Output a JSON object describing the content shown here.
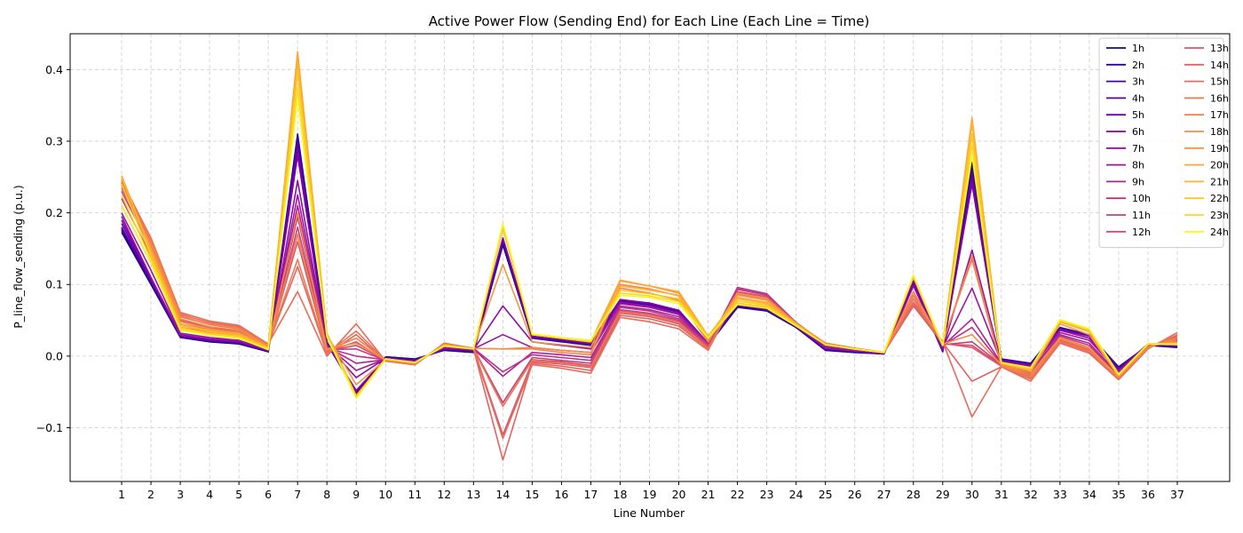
{
  "chart_data": {
    "type": "line",
    "title": "Active Power Flow (Sending End) for Each Line (Each Line = Time)",
    "xlabel": "Line Number",
    "ylabel": "P_line_flow_sending (p.u.)",
    "x": [
      1,
      2,
      3,
      4,
      5,
      6,
      7,
      8,
      9,
      10,
      11,
      12,
      13,
      14,
      15,
      16,
      17,
      18,
      19,
      20,
      21,
      22,
      23,
      24,
      25,
      26,
      27,
      28,
      29,
      30,
      31,
      32,
      33,
      34,
      35,
      36,
      37
    ],
    "ylim": [
      -0.175,
      0.45
    ],
    "yticks": [
      -0.1,
      0.0,
      0.1,
      0.2,
      0.3,
      0.4
    ],
    "ytick_labels": [
      "−0.1",
      "0.0",
      "0.1",
      "0.2",
      "0.3",
      "0.4"
    ],
    "grid": true,
    "legend": {
      "placement": "top-right",
      "columns": 2
    },
    "series": [
      {
        "name": "1h",
        "color": "#0d0887",
        "values": [
          0.173,
          0.1,
          0.026,
          0.02,
          0.017,
          0.006,
          0.31,
          0.02,
          -0.052,
          -0.001,
          -0.004,
          0.008,
          0.005,
          0.155,
          0.025,
          0.02,
          0.015,
          0.075,
          0.07,
          0.06,
          0.015,
          0.068,
          0.063,
          0.04,
          0.008,
          0.005,
          0.003,
          0.1,
          0.006,
          0.27,
          -0.004,
          -0.01,
          0.04,
          0.03,
          -0.015,
          0.015,
          0.012
        ]
      },
      {
        "name": "2h",
        "color": "#2c0594",
        "values": [
          0.176,
          0.102,
          0.027,
          0.021,
          0.018,
          0.006,
          0.3,
          0.019,
          -0.052,
          -0.002,
          -0.005,
          0.009,
          0.006,
          0.158,
          0.026,
          0.021,
          0.016,
          0.076,
          0.071,
          0.061,
          0.016,
          0.069,
          0.064,
          0.04,
          0.009,
          0.006,
          0.003,
          0.101,
          0.007,
          0.265,
          -0.005,
          -0.011,
          0.039,
          0.03,
          -0.016,
          0.015,
          0.013
        ]
      },
      {
        "name": "3h",
        "color": "#43039e",
        "values": [
          0.178,
          0.104,
          0.027,
          0.021,
          0.018,
          0.007,
          0.305,
          0.018,
          -0.051,
          -0.002,
          -0.005,
          0.009,
          0.006,
          0.16,
          0.026,
          0.021,
          0.016,
          0.077,
          0.072,
          0.062,
          0.016,
          0.07,
          0.064,
          0.041,
          0.009,
          0.006,
          0.003,
          0.102,
          0.007,
          0.26,
          -0.005,
          -0.011,
          0.038,
          0.029,
          -0.017,
          0.016,
          0.013
        ]
      },
      {
        "name": "4h",
        "color": "#5901a5",
        "values": [
          0.18,
          0.105,
          0.028,
          0.022,
          0.019,
          0.007,
          0.295,
          0.018,
          -0.05,
          -0.002,
          -0.006,
          0.01,
          0.007,
          0.162,
          0.027,
          0.022,
          0.017,
          0.078,
          0.073,
          0.063,
          0.017,
          0.071,
          0.065,
          0.041,
          0.01,
          0.007,
          0.004,
          0.103,
          0.008,
          0.255,
          -0.006,
          -0.012,
          0.038,
          0.029,
          -0.018,
          0.016,
          0.014
        ]
      },
      {
        "name": "5h",
        "color": "#6a00a8",
        "values": [
          0.185,
          0.107,
          0.028,
          0.022,
          0.019,
          0.007,
          0.29,
          0.017,
          -0.049,
          -0.003,
          -0.006,
          0.01,
          0.007,
          0.164,
          0.027,
          0.022,
          0.017,
          0.078,
          0.074,
          0.064,
          0.017,
          0.072,
          0.066,
          0.042,
          0.01,
          0.007,
          0.004,
          0.104,
          0.008,
          0.248,
          -0.006,
          -0.012,
          0.037,
          0.028,
          -0.019,
          0.017,
          0.014
        ]
      },
      {
        "name": "6h",
        "color": "#7e03a8",
        "values": [
          0.19,
          0.108,
          0.029,
          0.023,
          0.02,
          0.008,
          0.28,
          0.017,
          -0.048,
          -0.003,
          -0.007,
          0.011,
          0.008,
          0.165,
          0.028,
          0.023,
          0.018,
          0.079,
          0.074,
          0.064,
          0.018,
          0.072,
          0.066,
          0.042,
          0.011,
          0.007,
          0.004,
          0.105,
          0.009,
          0.24,
          -0.007,
          -0.013,
          0.037,
          0.028,
          -0.02,
          0.017,
          0.015
        ]
      },
      {
        "name": "7h",
        "color": "#8f0da4",
        "values": [
          0.195,
          0.11,
          0.03,
          0.024,
          0.021,
          0.008,
          0.245,
          0.016,
          -0.03,
          -0.003,
          -0.007,
          0.011,
          0.009,
          0.07,
          0.02,
          0.015,
          0.01,
          0.075,
          0.07,
          0.06,
          0.018,
          0.074,
          0.068,
          0.043,
          0.011,
          0.007,
          0.004,
          0.098,
          0.01,
          0.148,
          -0.008,
          -0.014,
          0.036,
          0.025,
          -0.021,
          0.016,
          0.016
        ]
      },
      {
        "name": "8h",
        "color": "#9c179e",
        "values": [
          0.2,
          0.12,
          0.032,
          0.026,
          0.022,
          0.009,
          0.225,
          0.015,
          -0.02,
          -0.004,
          -0.008,
          0.012,
          0.01,
          0.03,
          0.012,
          0.008,
          0.005,
          0.073,
          0.068,
          0.058,
          0.018,
          0.09,
          0.08,
          0.045,
          0.013,
          0.008,
          0.004,
          0.09,
          0.012,
          0.095,
          -0.009,
          -0.016,
          0.033,
          0.022,
          -0.022,
          0.015,
          0.018
        ]
      },
      {
        "name": "9h",
        "color": "#ab2494",
        "values": [
          0.21,
          0.13,
          0.036,
          0.03,
          0.025,
          0.011,
          0.21,
          0.013,
          -0.01,
          -0.005,
          -0.009,
          0.014,
          0.01,
          -0.028,
          0.005,
          0.002,
          -0.002,
          0.07,
          0.065,
          0.055,
          0.017,
          0.094,
          0.085,
          0.046,
          0.015,
          0.009,
          0.005,
          0.085,
          0.014,
          0.052,
          -0.01,
          -0.02,
          0.03,
          0.018,
          -0.025,
          0.014,
          0.02
        ]
      },
      {
        "name": "10h",
        "color": "#b83289",
        "values": [
          0.22,
          0.14,
          0.04,
          0.033,
          0.028,
          0.012,
          0.195,
          0.011,
          0.0,
          -0.005,
          -0.01,
          0.015,
          0.011,
          -0.022,
          0.002,
          -0.002,
          -0.006,
          0.068,
          0.063,
          0.052,
          0.016,
          0.096,
          0.087,
          0.047,
          0.016,
          0.01,
          0.005,
          0.08,
          0.015,
          0.04,
          -0.011,
          -0.023,
          0.028,
          0.015,
          -0.027,
          0.013,
          0.022
        ]
      },
      {
        "name": "11h",
        "color": "#c5407e",
        "values": [
          0.23,
          0.15,
          0.045,
          0.037,
          0.031,
          0.013,
          0.18,
          0.009,
          0.01,
          -0.006,
          -0.011,
          0.016,
          0.011,
          -0.065,
          -0.002,
          -0.006,
          -0.01,
          0.065,
          0.06,
          0.05,
          0.015,
          0.093,
          0.085,
          0.047,
          0.017,
          0.01,
          0.005,
          0.075,
          0.016,
          0.02,
          -0.012,
          -0.026,
          0.026,
          0.012,
          -0.029,
          0.012,
          0.024
        ]
      },
      {
        "name": "12h",
        "color": "#d04d73",
        "values": [
          0.235,
          0.155,
          0.05,
          0.04,
          0.034,
          0.014,
          0.17,
          0.007,
          0.015,
          -0.006,
          -0.011,
          0.017,
          0.011,
          -0.07,
          -0.005,
          -0.008,
          -0.013,
          0.063,
          0.058,
          0.048,
          0.014,
          0.09,
          0.083,
          0.046,
          0.017,
          0.01,
          0.005,
          0.072,
          0.017,
          0.015,
          -0.013,
          -0.028,
          0.024,
          0.01,
          -0.03,
          0.012,
          0.026
        ]
      },
      {
        "name": "13h",
        "color": "#d8576b",
        "values": [
          0.24,
          0.16,
          0.055,
          0.044,
          0.038,
          0.015,
          0.16,
          0.006,
          0.02,
          -0.007,
          -0.012,
          0.018,
          0.011,
          -0.11,
          -0.008,
          -0.011,
          -0.016,
          0.06,
          0.055,
          0.045,
          0.012,
          0.088,
          0.081,
          0.046,
          0.018,
          0.011,
          0.005,
          0.07,
          0.018,
          0.012,
          -0.014,
          -0.03,
          0.022,
          0.008,
          -0.031,
          0.011,
          0.028
        ]
      },
      {
        "name": "14h",
        "color": "#e16462",
        "values": [
          0.242,
          0.162,
          0.058,
          0.047,
          0.041,
          0.016,
          0.125,
          0.003,
          0.03,
          -0.007,
          -0.012,
          0.018,
          0.01,
          -0.145,
          -0.01,
          -0.014,
          -0.02,
          0.057,
          0.052,
          0.042,
          0.01,
          0.087,
          0.08,
          0.045,
          0.018,
          0.011,
          0.005,
          0.072,
          0.019,
          -0.035,
          -0.015,
          -0.032,
          0.02,
          0.006,
          -0.032,
          0.011,
          0.03
        ]
      },
      {
        "name": "15h",
        "color": "#e66c5c",
        "values": [
          0.245,
          0.165,
          0.061,
          0.049,
          0.043,
          0.017,
          0.09,
          0.0,
          0.045,
          -0.007,
          -0.012,
          0.018,
          0.01,
          -0.115,
          -0.012,
          -0.017,
          -0.024,
          0.054,
          0.048,
          0.038,
          0.008,
          0.086,
          0.079,
          0.045,
          0.018,
          0.011,
          0.005,
          0.075,
          0.02,
          -0.085,
          -0.015,
          -0.035,
          0.018,
          0.004,
          -0.033,
          0.01,
          0.033
        ]
      },
      {
        "name": "16h",
        "color": "#ed7953",
        "values": [
          0.243,
          0.163,
          0.059,
          0.046,
          0.04,
          0.016,
          0.135,
          0.004,
          0.035,
          -0.006,
          -0.011,
          0.017,
          0.01,
          -0.07,
          -0.006,
          -0.01,
          -0.015,
          0.062,
          0.057,
          0.047,
          0.01,
          0.087,
          0.08,
          0.046,
          0.018,
          0.011,
          0.005,
          0.08,
          0.019,
          0.135,
          -0.014,
          -0.031,
          0.021,
          0.007,
          -0.031,
          0.011,
          0.03
        ]
      },
      {
        "name": "17h",
        "color": "#f2844b",
        "values": [
          0.24,
          0.158,
          0.056,
          0.044,
          0.038,
          0.015,
          0.17,
          0.008,
          0.025,
          -0.006,
          -0.011,
          0.017,
          0.011,
          0.01,
          0.01,
          0.005,
          0.002,
          0.095,
          0.088,
          0.078,
          0.02,
          0.088,
          0.081,
          0.046,
          0.018,
          0.011,
          0.005,
          0.085,
          0.018,
          0.14,
          -0.013,
          -0.028,
          0.024,
          0.01,
          -0.03,
          0.012,
          0.026
        ]
      },
      {
        "name": "18h",
        "color": "#f58c46",
        "values": [
          0.238,
          0.155,
          0.052,
          0.041,
          0.036,
          0.014,
          0.2,
          0.01,
          0.018,
          -0.005,
          -0.01,
          0.016,
          0.011,
          0.01,
          0.012,
          0.008,
          0.005,
          0.1,
          0.094,
          0.084,
          0.022,
          0.088,
          0.08,
          0.046,
          0.017,
          0.01,
          0.005,
          0.09,
          0.017,
          0.03,
          -0.012,
          -0.025,
          0.026,
          0.012,
          -0.029,
          0.013,
          0.023
        ]
      },
      {
        "name": "19h",
        "color": "#f89540",
        "values": [
          0.248,
          0.15,
          0.048,
          0.038,
          0.033,
          0.013,
          0.42,
          0.03,
          -0.04,
          -0.005,
          -0.01,
          0.016,
          0.011,
          0.128,
          0.02,
          0.016,
          0.012,
          0.105,
          0.098,
          0.088,
          0.025,
          0.085,
          0.078,
          0.046,
          0.017,
          0.01,
          0.005,
          0.11,
          0.016,
          0.33,
          -0.011,
          -0.022,
          0.045,
          0.03,
          -0.028,
          0.016,
          0.02
        ]
      },
      {
        "name": "20h",
        "color": "#fca636",
        "values": [
          0.252,
          0.148,
          0.045,
          0.036,
          0.031,
          0.012,
          0.425,
          0.032,
          -0.055,
          -0.004,
          -0.009,
          0.015,
          0.01,
          0.18,
          0.03,
          0.025,
          0.02,
          0.106,
          0.098,
          0.09,
          0.028,
          0.082,
          0.075,
          0.045,
          0.016,
          0.01,
          0.005,
          0.112,
          0.015,
          0.333,
          -0.01,
          -0.02,
          0.048,
          0.034,
          -0.027,
          0.017,
          0.018
        ]
      },
      {
        "name": "21h",
        "color": "#fdb32f",
        "values": [
          0.25,
          0.145,
          0.043,
          0.034,
          0.03,
          0.012,
          0.41,
          0.031,
          -0.056,
          -0.004,
          -0.009,
          0.015,
          0.01,
          0.178,
          0.03,
          0.025,
          0.02,
          0.098,
          0.092,
          0.085,
          0.028,
          0.08,
          0.073,
          0.045,
          0.016,
          0.01,
          0.005,
          0.112,
          0.015,
          0.325,
          -0.01,
          -0.019,
          0.049,
          0.035,
          -0.027,
          0.017,
          0.018
        ]
      },
      {
        "name": "22h",
        "color": "#fbc626",
        "values": [
          0.24,
          0.14,
          0.04,
          0.032,
          0.028,
          0.011,
          0.395,
          0.03,
          -0.057,
          -0.004,
          -0.009,
          0.015,
          0.01,
          0.181,
          0.03,
          0.025,
          0.02,
          0.092,
          0.087,
          0.08,
          0.027,
          0.077,
          0.071,
          0.044,
          0.016,
          0.01,
          0.005,
          0.112,
          0.015,
          0.31,
          -0.01,
          -0.018,
          0.05,
          0.036,
          -0.027,
          0.017,
          0.017
        ]
      },
      {
        "name": "23h",
        "color": "#f7d91f",
        "values": [
          0.225,
          0.135,
          0.038,
          0.03,
          0.026,
          0.01,
          0.375,
          0.028,
          -0.058,
          -0.004,
          -0.009,
          0.014,
          0.01,
          0.183,
          0.03,
          0.025,
          0.021,
          0.088,
          0.084,
          0.076,
          0.026,
          0.074,
          0.069,
          0.043,
          0.016,
          0.01,
          0.005,
          0.113,
          0.015,
          0.295,
          -0.009,
          -0.017,
          0.05,
          0.037,
          -0.026,
          0.017,
          0.017
        ]
      },
      {
        "name": "24h",
        "color": "#f0f921",
        "values": [
          0.21,
          0.13,
          0.036,
          0.029,
          0.025,
          0.009,
          0.36,
          0.027,
          -0.059,
          -0.004,
          -0.009,
          0.014,
          0.01,
          0.185,
          0.031,
          0.026,
          0.022,
          0.085,
          0.082,
          0.073,
          0.025,
          0.072,
          0.067,
          0.042,
          0.016,
          0.01,
          0.005,
          0.113,
          0.015,
          0.28,
          -0.009,
          -0.016,
          0.051,
          0.038,
          -0.025,
          0.017,
          0.016
        ]
      }
    ]
  }
}
